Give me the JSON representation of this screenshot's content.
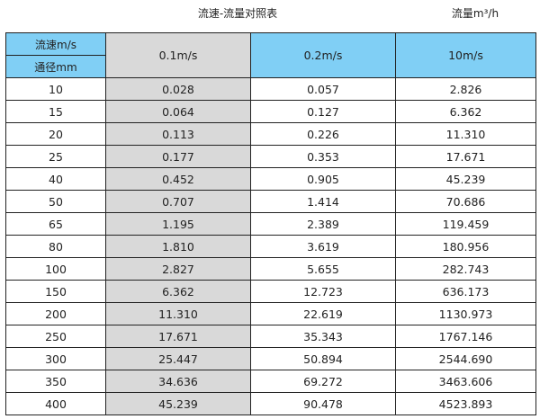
{
  "title": "流速-流量对照表",
  "unit": "流量m³/h",
  "header": {
    "velocity_label": "流速m/s",
    "diameter_label": "通径mm",
    "columns": [
      "0.1m/s",
      "0.2m/s",
      "10m/s"
    ]
  },
  "colors": {
    "header": "#80cff5",
    "header_highlight": "#6cb0d6",
    "highlight_column": "#d9d9d9"
  },
  "rows": [
    [
      "10",
      "0.028",
      "0.057",
      "2.826"
    ],
    [
      "15",
      "0.064",
      "0.127",
      "6.362"
    ],
    [
      "20",
      "0.113",
      "0.226",
      "11.310"
    ],
    [
      "25",
      "0.177",
      "0.353",
      "17.671"
    ],
    [
      "40",
      "0.452",
      "0.905",
      "45.239"
    ],
    [
      "50",
      "0.707",
      "1.414",
      "70.686"
    ],
    [
      "65",
      "1.195",
      "2.389",
      "119.459"
    ],
    [
      "80",
      "1.810",
      "3.619",
      "180.956"
    ],
    [
      "100",
      "2.827",
      "5.655",
      "282.743"
    ],
    [
      "150",
      "6.362",
      "12.723",
      "636.173"
    ],
    [
      "200",
      "11.310",
      "22.619",
      "1130.973"
    ],
    [
      "250",
      "17.671",
      "35.343",
      "1767.146"
    ],
    [
      "300",
      "25.447",
      "50.894",
      "2544.690"
    ],
    [
      "350",
      "34.636",
      "69.272",
      "3463.606"
    ],
    [
      "400",
      "45.239",
      "90.478",
      "4523.893"
    ]
  ]
}
